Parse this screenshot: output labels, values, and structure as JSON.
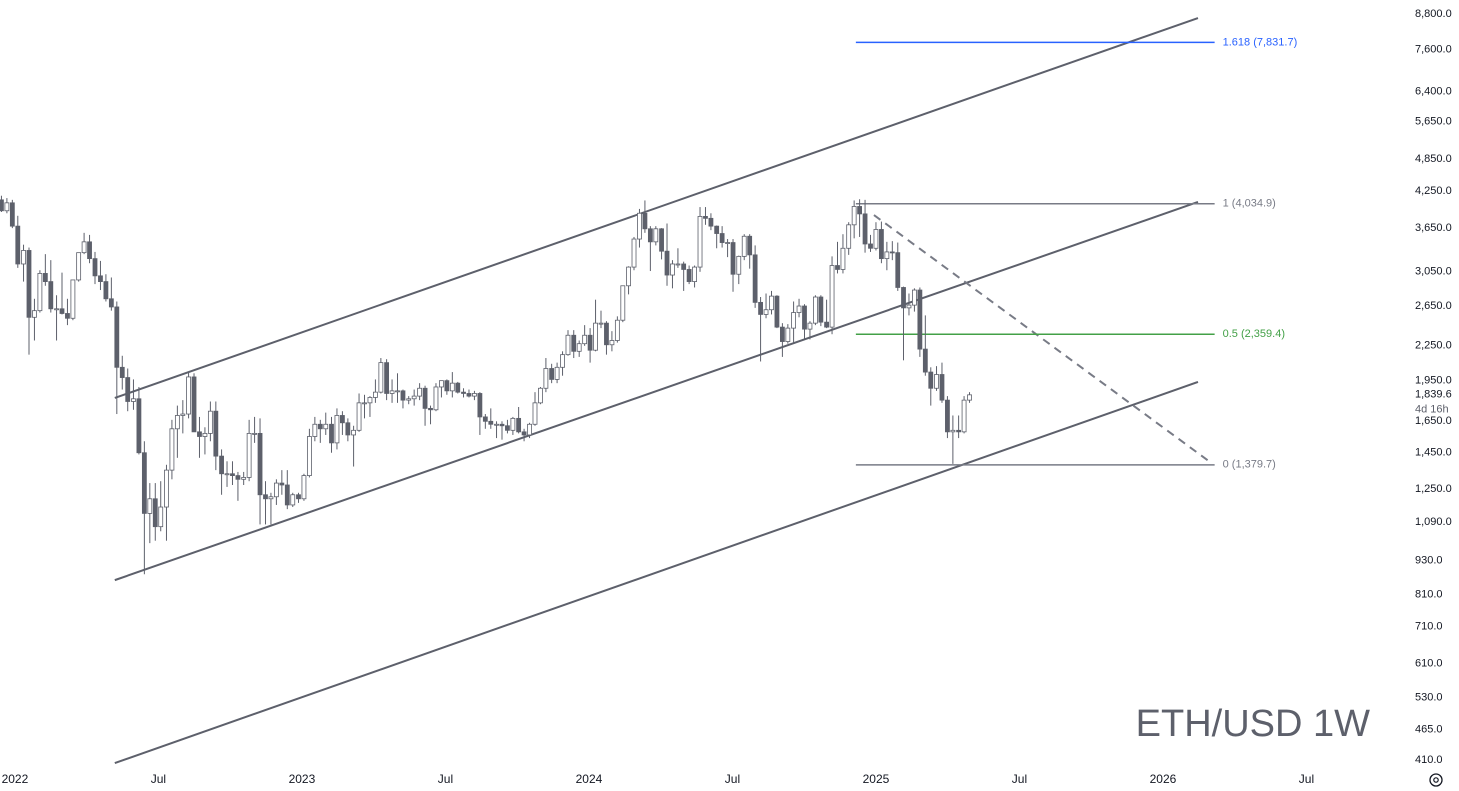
{
  "chart_data": {
    "type": "candlestick",
    "title": "ETH/USD 1W",
    "x": [
      2021.953,
      2021.972,
      2021.991,
      2022.01,
      2022.03,
      2022.049,
      2022.068,
      2022.087,
      2022.106,
      2022.125,
      2022.145,
      2022.164,
      2022.183,
      2022.202,
      2022.222,
      2022.241,
      2022.26,
      2022.279,
      2022.298,
      2022.317,
      2022.336,
      2022.355,
      2022.374,
      2022.393,
      2022.413,
      2022.432,
      2022.451,
      2022.47,
      2022.489,
      2022.508,
      2022.528,
      2022.547,
      2022.566,
      2022.585,
      2022.605,
      2022.624,
      2022.643,
      2022.662,
      2022.681,
      2022.7,
      2022.72,
      2022.739,
      2022.758,
      2022.777,
      2022.797,
      2022.816,
      2022.835,
      2022.854,
      2022.873,
      2022.892,
      2022.911,
      2022.93,
      2022.949,
      2022.968,
      2022.988,
      2023.007,
      2023.026,
      2023.045,
      2023.064,
      2023.083,
      2023.103,
      2023.122,
      2023.141,
      2023.16,
      2023.18,
      2023.199,
      2023.218,
      2023.237,
      2023.256,
      2023.275,
      2023.295,
      2023.314,
      2023.333,
      2023.352,
      2023.372,
      2023.391,
      2023.41,
      2023.429,
      2023.448,
      2023.467,
      2023.486,
      2023.505,
      2023.524,
      2023.543,
      2023.563,
      2023.582,
      2023.601,
      2023.62,
      2023.639,
      2023.658,
      2023.678,
      2023.697,
      2023.716,
      2023.735,
      2023.755,
      2023.774,
      2023.793,
      2023.812,
      2023.831,
      2023.85,
      2023.87,
      2023.889,
      2023.908,
      2023.927,
      2023.947,
      2023.966,
      2023.985,
      2024.004,
      2024.023,
      2024.042,
      2024.061,
      2024.08,
      2024.099,
      2024.118,
      2024.138,
      2024.157,
      2024.176,
      2024.195,
      2024.214,
      2024.233,
      2024.253,
      2024.272,
      2024.291,
      2024.31,
      2024.33,
      2024.349,
      2024.368,
      2024.387,
      2024.406,
      2024.425,
      2024.445,
      2024.464,
      2024.483,
      2024.502,
      2024.522,
      2024.541,
      2024.56,
      2024.579,
      2024.598,
      2024.617,
      2024.636,
      2024.655,
      2024.674,
      2024.693,
      2024.713,
      2024.732,
      2024.751,
      2024.77,
      2024.789,
      2024.808,
      2024.828,
      2024.847,
      2024.866,
      2024.885,
      2024.905,
      2024.924,
      2024.943,
      2024.962,
      2024.981,
      2025.0,
      2025.019,
      2025.038,
      2025.057,
      2025.076,
      2025.096,
      2025.115,
      2025.134,
      2025.153,
      2025.172,
      2025.191,
      2025.211,
      2025.23,
      2025.249,
      2025.268,
      2025.288,
      2025.307,
      2025.326
    ],
    "open": [
      4100,
      3920,
      4050,
      3680,
      3150,
      3330,
      2530,
      2600,
      3030,
      2930,
      2620,
      2620,
      2570,
      2520,
      2950,
      3300,
      3450,
      3220,
      3000,
      2930,
      2730,
      2640,
      2060,
      1975,
      1790,
      1810,
      1450,
      1130,
      1200,
      1070,
      1160,
      1350,
      1600,
      1690,
      1700,
      1980,
      1580,
      1550,
      1570,
      1720,
      1430,
      1330,
      1330,
      1320,
      1300,
      1310,
      1570,
      1570,
      1220,
      1200,
      1210,
      1280,
      1270,
      1170,
      1220,
      1200,
      1320,
      1550,
      1630,
      1600,
      1630,
      1510,
      1690,
      1640,
      1560,
      1590,
      1780,
      1780,
      1820,
      1860,
      2100,
      1850,
      1870,
      1870,
      1800,
      1810,
      1830,
      1890,
      1740,
      1730,
      1900,
      1950,
      1870,
      1930,
      1860,
      1850,
      1830,
      1850,
      1680,
      1650,
      1630,
      1630,
      1620,
      1590,
      1670,
      1580,
      1560,
      1630,
      1780,
      1890,
      2050,
      1960,
      2060,
      2170,
      2350,
      2200,
      2270,
      2350,
      2210,
      2470,
      2470,
      2260,
      2300,
      2500,
      2880,
      3110,
      3490,
      3880,
      3640,
      3450,
      3640,
      3320,
      3010,
      3150,
      3150,
      3080,
      2930,
      3110,
      3830,
      3800,
      3680,
      3570,
      3440,
      3440,
      3020,
      3250,
      3530,
      3270,
      2690,
      2560,
      2610,
      2760,
      2430,
      2290,
      2420,
      2580,
      2650,
      2410,
      2470,
      2750,
      2480,
      2430,
      3130,
      3080,
      3360,
      3700,
      3990,
      3870,
      3420,
      3360,
      3630,
      3220,
      3310,
      3300,
      2860,
      2630,
      2660,
      2830,
      2220,
      2020,
      1890,
      2000,
      1800,
      1580,
      1590,
      1580,
      1800
    ],
    "high": [
      4170,
      4130,
      4100,
      3840,
      3410,
      3370,
      2730,
      3070,
      3280,
      3200,
      2770,
      3040,
      2730,
      2950,
      3300,
      3580,
      3550,
      3310,
      3190,
      3020,
      2980,
      2700,
      2160,
      2050,
      1960,
      1900,
      1520,
      1280,
      1280,
      1290,
      1380,
      1660,
      1760,
      1800,
      2020,
      2010,
      1680,
      1610,
      1790,
      1790,
      1470,
      1400,
      1400,
      1340,
      1340,
      1660,
      1680,
      1670,
      1290,
      1230,
      1300,
      1350,
      1350,
      1230,
      1230,
      1330,
      1600,
      1680,
      1660,
      1710,
      1680,
      1740,
      1720,
      1670,
      1620,
      1850,
      1840,
      1830,
      1960,
      2140,
      2130,
      1960,
      2010,
      1880,
      1830,
      1880,
      1930,
      1910,
      1760,
      1930,
      1950,
      1960,
      2020,
      1940,
      1890,
      1880,
      1870,
      1860,
      1700,
      1740,
      1650,
      1650,
      1660,
      1680,
      1750,
      1600,
      1640,
      1860,
      1900,
      2140,
      2090,
      2100,
      2200,
      2400,
      2400,
      2300,
      2450,
      2420,
      2720,
      2600,
      2490,
      2390,
      2540,
      2880,
      3120,
      3520,
      3950,
      4090,
      3680,
      3680,
      3650,
      3720,
      3200,
      3360,
      3180,
      3130,
      3130,
      3980,
      3980,
      3880,
      3690,
      3680,
      3490,
      3490,
      3260,
      3560,
      3560,
      3400,
      2750,
      2790,
      2820,
      2770,
      2470,
      2460,
      2700,
      2730,
      2670,
      2490,
      2770,
      2770,
      2720,
      3250,
      3450,
      3560,
      3740,
      4090,
      4110,
      4100,
      3550,
      3740,
      3750,
      3450,
      3460,
      3440,
      2870,
      2790,
      2850,
      2860,
      2550,
      2060,
      2070,
      2100,
      1830,
      1690,
      1690,
      1830,
      1860
    ],
    "low": [
      3900,
      3880,
      3650,
      3100,
      2930,
      2170,
      2300,
      2580,
      2880,
      2580,
      2300,
      2560,
      2450,
      2500,
      2930,
      3280,
      3160,
      2900,
      2830,
      2700,
      2600,
      1700,
      1880,
      1720,
      1730,
      1440,
      880,
      1000,
      1010,
      1050,
      1010,
      1300,
      1420,
      1570,
      1670,
      1580,
      1420,
      1440,
      1520,
      1350,
      1220,
      1260,
      1270,
      1190,
      1270,
      1290,
      1510,
      1080,
      1080,
      1080,
      1170,
      1220,
      1150,
      1160,
      1180,
      1190,
      1310,
      1520,
      1510,
      1560,
      1450,
      1470,
      1560,
      1520,
      1370,
      1580,
      1670,
      1680,
      1780,
      1850,
      1800,
      1780,
      1780,
      1740,
      1770,
      1760,
      1800,
      1620,
      1630,
      1720,
      1820,
      1840,
      1820,
      1850,
      1820,
      1820,
      1800,
      1560,
      1600,
      1600,
      1540,
      1530,
      1570,
      1560,
      1570,
      1520,
      1540,
      1620,
      1770,
      1860,
      1930,
      1930,
      1990,
      2160,
      2140,
      2150,
      2250,
      2100,
      2200,
      2420,
      2170,
      2200,
      2280,
      2480,
      2780,
      3070,
      3370,
      3580,
      3060,
      3400,
      3210,
      2880,
      2850,
      3100,
      2820,
      2900,
      2860,
      3050,
      3700,
      3620,
      3360,
      3370,
      3240,
      2810,
      2900,
      3200,
      3090,
      2630,
      2110,
      2520,
      2560,
      2420,
      2150,
      2270,
      2280,
      2530,
      2310,
      2310,
      2450,
      2440,
      2420,
      2360,
      3030,
      3030,
      3270,
      3500,
      3520,
      3300,
      3310,
      3330,
      3160,
      3070,
      3200,
      2820,
      2120,
      2550,
      2590,
      2150,
      1990,
      1760,
      1870,
      1780,
      1540,
      1385,
      1540,
      1570,
      1780
    ],
    "close": [
      3920,
      4050,
      3680,
      3150,
      3330,
      2530,
      2600,
      3030,
      2930,
      2620,
      2620,
      2570,
      2520,
      2950,
      3300,
      3450,
      3220,
      3000,
      2930,
      2730,
      2640,
      2060,
      1975,
      1790,
      1810,
      1450,
      1130,
      1200,
      1070,
      1160,
      1350,
      1600,
      1690,
      1700,
      1980,
      1580,
      1550,
      1570,
      1720,
      1430,
      1330,
      1330,
      1320,
      1300,
      1310,
      1570,
      1570,
      1220,
      1200,
      1210,
      1280,
      1270,
      1170,
      1220,
      1200,
      1320,
      1550,
      1630,
      1600,
      1630,
      1510,
      1690,
      1640,
      1560,
      1590,
      1780,
      1780,
      1820,
      1860,
      2100,
      1850,
      1870,
      1870,
      1800,
      1810,
      1830,
      1890,
      1740,
      1730,
      1900,
      1950,
      1870,
      1930,
      1860,
      1850,
      1830,
      1850,
      1680,
      1650,
      1630,
      1630,
      1620,
      1590,
      1670,
      1580,
      1560,
      1630,
      1780,
      1890,
      2050,
      1960,
      2060,
      2170,
      2350,
      2200,
      2270,
      2350,
      2210,
      2470,
      2470,
      2260,
      2300,
      2500,
      2880,
      3110,
      3490,
      3880,
      3640,
      3450,
      3640,
      3320,
      3010,
      3150,
      3150,
      3080,
      2930,
      3110,
      3830,
      3800,
      3680,
      3570,
      3440,
      3440,
      3020,
      3250,
      3530,
      3270,
      2690,
      2560,
      2610,
      2760,
      2430,
      2290,
      2420,
      2580,
      2650,
      2410,
      2470,
      2750,
      2480,
      2430,
      3130,
      3080,
      3360,
      3700,
      3990,
      3870,
      3420,
      3360,
      3630,
      3220,
      3310,
      3300,
      2860,
      2630,
      2660,
      2830,
      2220,
      2020,
      1890,
      2000,
      1800,
      1580,
      1590,
      1580,
      1800,
      1839.6
    ],
    "up_color": "#ffffff",
    "down_color": "#5d606b",
    "wick_color": "#5d606b",
    "log_scale": true,
    "grid": false,
    "xlim": [
      2021.948,
      2026.791
    ],
    "ylim": [
      393.6,
      9322
    ],
    "xticks": [
      {
        "value": 2022,
        "label": "2022"
      },
      {
        "value": 2022.5,
        "label": "Jul"
      },
      {
        "value": 2023,
        "label": "2023"
      },
      {
        "value": 2023.5,
        "label": "Jul"
      },
      {
        "value": 2024,
        "label": "2024"
      },
      {
        "value": 2024.5,
        "label": "Jul"
      },
      {
        "value": 2025,
        "label": "2025"
      },
      {
        "value": 2025.5,
        "label": "Jul"
      },
      {
        "value": 2026,
        "label": "2026"
      },
      {
        "value": 2026.5,
        "label": "Jul"
      }
    ],
    "yticks": [
      {
        "value": 8800,
        "label": "8,800.0"
      },
      {
        "value": 7600,
        "label": "7,600.0"
      },
      {
        "value": 6400,
        "label": "6,400.0"
      },
      {
        "value": 5650,
        "label": "5,650.0"
      },
      {
        "value": 4850,
        "label": "4,850.0"
      },
      {
        "value": 4250,
        "label": "4,250.0"
      },
      {
        "value": 3650,
        "label": "3,650.0"
      },
      {
        "value": 3050,
        "label": "3,050.0"
      },
      {
        "value": 2650,
        "label": "2,650.0"
      },
      {
        "value": 2250,
        "label": "2,250.0"
      },
      {
        "value": 1950,
        "label": "1,950.0"
      },
      {
        "value": 1650,
        "label": "1,650.0"
      },
      {
        "value": 1450,
        "label": "1,450.0"
      },
      {
        "value": 1250,
        "label": "1,250.0"
      },
      {
        "value": 1090,
        "label": "1,090.0"
      },
      {
        "value": 930,
        "label": "930.0"
      },
      {
        "value": 810,
        "label": "810.0"
      },
      {
        "value": 710,
        "label": "710.0"
      },
      {
        "value": 610,
        "label": "610.0"
      },
      {
        "value": 530,
        "label": "530.0"
      },
      {
        "value": 465,
        "label": "465.0"
      },
      {
        "value": 410,
        "label": "410.0"
      }
    ],
    "last_price": {
      "value": 1839.6,
      "label": "1,839.6"
    },
    "countdown": "4d 16h",
    "line_color": "#5d606b",
    "channel": [
      {
        "x": [
          2022.348,
          2026.122
        ],
        "y": [
          1816,
          8657
        ]
      },
      {
        "x": [
          2022.348,
          2026.122
        ],
        "y": [
          859,
          4064
        ]
      },
      {
        "x": [
          2022.348,
          2026.122
        ],
        "y": [
          405,
          1940
        ]
      }
    ],
    "dashed_line": {
      "x": [
        2024.993,
        2026.164
      ],
      "y": [
        3852,
        1396
      ]
    },
    "fib": {
      "x": [
        2024.93,
        2026.18
      ],
      "levels": [
        {
          "value": 7831.7,
          "label": "1.618 (7,831.7)",
          "color": "#2962ff"
        },
        {
          "value": 4034.9,
          "label": "1 (4,034.9)",
          "color": "#787b86"
        },
        {
          "value": 2359.4,
          "label": "0.5 (2,359.4)",
          "color": "#43a047"
        },
        {
          "value": 1379.7,
          "label": "0 (1,379.7)",
          "color": "#787b86"
        }
      ]
    }
  }
}
